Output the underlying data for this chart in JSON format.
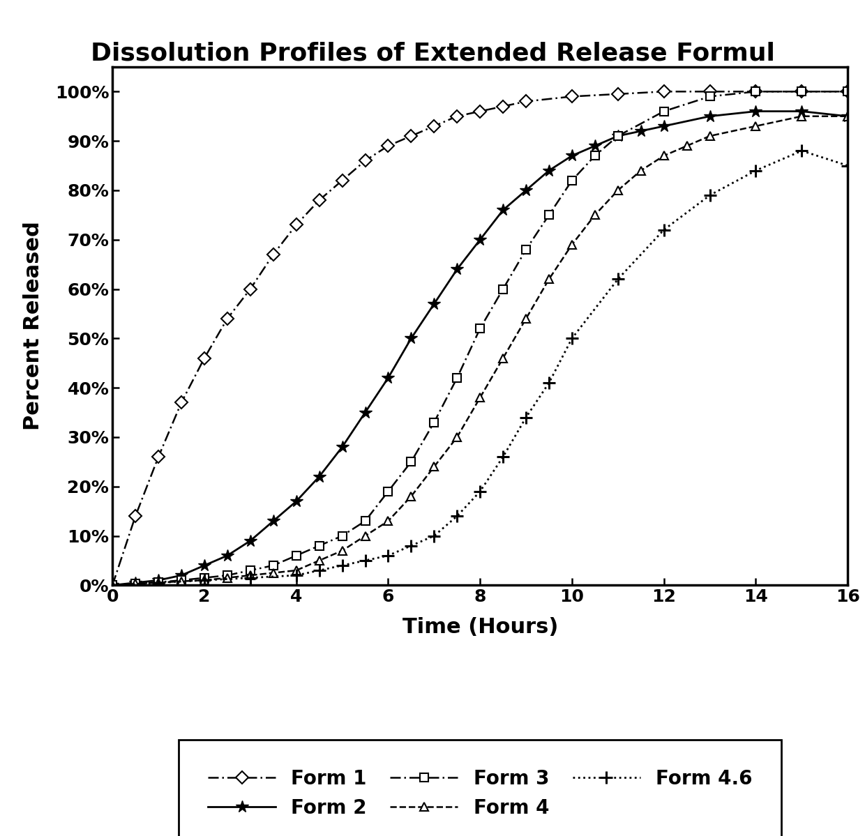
{
  "title": "Dissolution Profiles of Extended Release Formul",
  "xlabel": "Time (Hours)",
  "ylabel": "Percent Released",
  "xlim": [
    0,
    16
  ],
  "ylim": [
    0,
    1.05
  ],
  "xticks": [
    0,
    2,
    4,
    6,
    8,
    10,
    12,
    14,
    16
  ],
  "yticks": [
    0.0,
    0.1,
    0.2,
    0.3,
    0.4,
    0.5,
    0.6,
    0.7,
    0.8,
    0.9,
    1.0
  ],
  "ytick_labels": [
    "0%",
    "10%",
    "20%",
    "30%",
    "40%",
    "50%",
    "60%",
    "70%",
    "80%",
    "90%",
    "100%"
  ],
  "form1": {
    "label": "Form 1",
    "x": [
      0,
      0.5,
      1.0,
      1.5,
      2.0,
      2.5,
      3.0,
      3.5,
      4.0,
      4.5,
      5.0,
      5.5,
      6.0,
      6.5,
      7.0,
      7.5,
      8.0,
      8.5,
      9.0,
      10.0,
      11.0,
      12.0,
      13.0,
      14.0,
      15.0,
      16.0
    ],
    "y": [
      0,
      0.14,
      0.26,
      0.37,
      0.46,
      0.54,
      0.6,
      0.67,
      0.73,
      0.78,
      0.82,
      0.86,
      0.89,
      0.91,
      0.93,
      0.95,
      0.96,
      0.97,
      0.98,
      0.99,
      0.995,
      1.0,
      1.0,
      1.0,
      1.0,
      1.0
    ]
  },
  "form2": {
    "label": "Form 2",
    "x": [
      0,
      0.5,
      1.0,
      1.5,
      2.0,
      2.5,
      3.0,
      3.5,
      4.0,
      4.5,
      5.0,
      5.5,
      6.0,
      6.5,
      7.0,
      7.5,
      8.0,
      8.5,
      9.0,
      9.5,
      10.0,
      10.5,
      11.0,
      11.5,
      12.0,
      13.0,
      14.0,
      15.0,
      16.0
    ],
    "y": [
      0,
      0.005,
      0.01,
      0.02,
      0.04,
      0.06,
      0.09,
      0.13,
      0.17,
      0.22,
      0.28,
      0.35,
      0.42,
      0.5,
      0.57,
      0.64,
      0.7,
      0.76,
      0.8,
      0.84,
      0.87,
      0.89,
      0.91,
      0.92,
      0.93,
      0.95,
      0.96,
      0.96,
      0.95
    ]
  },
  "form3": {
    "label": "Form 3",
    "x": [
      0,
      0.5,
      1.0,
      1.5,
      2.0,
      2.5,
      3.0,
      3.5,
      4.0,
      4.5,
      5.0,
      5.5,
      6.0,
      6.5,
      7.0,
      7.5,
      8.0,
      8.5,
      9.0,
      9.5,
      10.0,
      10.5,
      11.0,
      12.0,
      13.0,
      14.0,
      15.0,
      16.0
    ],
    "y": [
      0,
      0.003,
      0.006,
      0.01,
      0.015,
      0.02,
      0.03,
      0.04,
      0.06,
      0.08,
      0.1,
      0.13,
      0.19,
      0.25,
      0.33,
      0.42,
      0.52,
      0.6,
      0.68,
      0.75,
      0.82,
      0.87,
      0.91,
      0.96,
      0.99,
      1.0,
      1.0,
      1.0
    ]
  },
  "form4": {
    "label": "Form 4",
    "x": [
      0,
      0.5,
      1.0,
      1.5,
      2.0,
      2.5,
      3.0,
      3.5,
      4.0,
      4.5,
      5.0,
      5.5,
      6.0,
      6.5,
      7.0,
      7.5,
      8.0,
      8.5,
      9.0,
      9.5,
      10.0,
      10.5,
      11.0,
      11.5,
      12.0,
      12.5,
      13.0,
      14.0,
      15.0,
      16.0
    ],
    "y": [
      0,
      0.003,
      0.005,
      0.008,
      0.01,
      0.015,
      0.02,
      0.025,
      0.03,
      0.05,
      0.07,
      0.1,
      0.13,
      0.18,
      0.24,
      0.3,
      0.38,
      0.46,
      0.54,
      0.62,
      0.69,
      0.75,
      0.8,
      0.84,
      0.87,
      0.89,
      0.91,
      0.93,
      0.95,
      0.95
    ]
  },
  "form46": {
    "label": "Form 4.6",
    "x": [
      0,
      1.0,
      2.0,
      3.0,
      4.0,
      4.5,
      5.0,
      5.5,
      6.0,
      6.5,
      7.0,
      7.5,
      8.0,
      8.5,
      9.0,
      9.5,
      10.0,
      11.0,
      12.0,
      13.0,
      14.0,
      15.0,
      16.0
    ],
    "y": [
      0,
      0.005,
      0.01,
      0.015,
      0.02,
      0.03,
      0.04,
      0.05,
      0.06,
      0.08,
      0.1,
      0.14,
      0.19,
      0.26,
      0.34,
      0.41,
      0.5,
      0.62,
      0.72,
      0.79,
      0.84,
      0.88,
      0.85
    ]
  },
  "background_color": "#ffffff",
  "title_fontsize": 26,
  "axis_label_fontsize": 22,
  "tick_fontsize": 18,
  "legend_fontsize": 20
}
